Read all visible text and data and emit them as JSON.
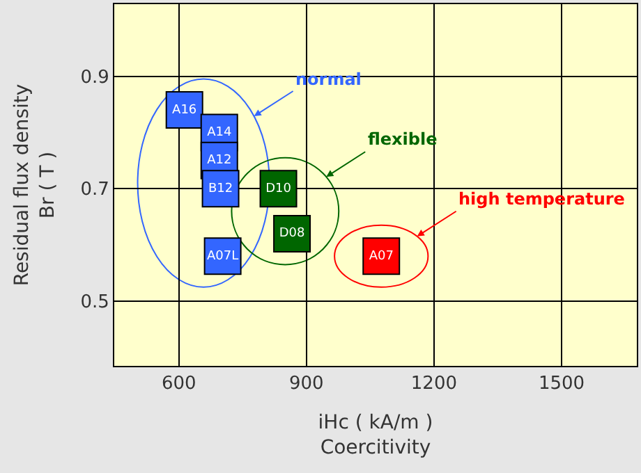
{
  "chart_data": {
    "type": "scatter",
    "xlabel": "iHc ( kA/m )\nCoercitivity",
    "ylabel": "Residual flux density\nBr ( T )",
    "xlim": [
      448,
      1677
    ],
    "ylim": [
      0.385,
      1.028
    ],
    "xticks": [
      600,
      900,
      1200,
      1500
    ],
    "yticks": [
      0.5,
      0.7,
      0.9
    ],
    "grid": true,
    "marker": "square",
    "series": [
      {
        "name": "normal",
        "color": "#3366ff",
        "x": [
          613,
          695,
          695,
          698,
          703
        ],
        "values": [
          0.84,
          0.8,
          0.75,
          0.7,
          0.58
        ],
        "value_labels": [
          "A16",
          "A14",
          "A12",
          "B12",
          "A07L"
        ]
      },
      {
        "name": "flexible",
        "color": "#006600",
        "x": [
          834,
          866
        ],
        "values": [
          0.7,
          0.62
        ],
        "value_labels": [
          "D10",
          "D08"
        ]
      },
      {
        "name": "high temperature",
        "color": "#ff0000",
        "x": [
          1076
        ],
        "values": [
          0.58
        ],
        "value_labels": [
          "A07"
        ]
      }
    ]
  }
}
